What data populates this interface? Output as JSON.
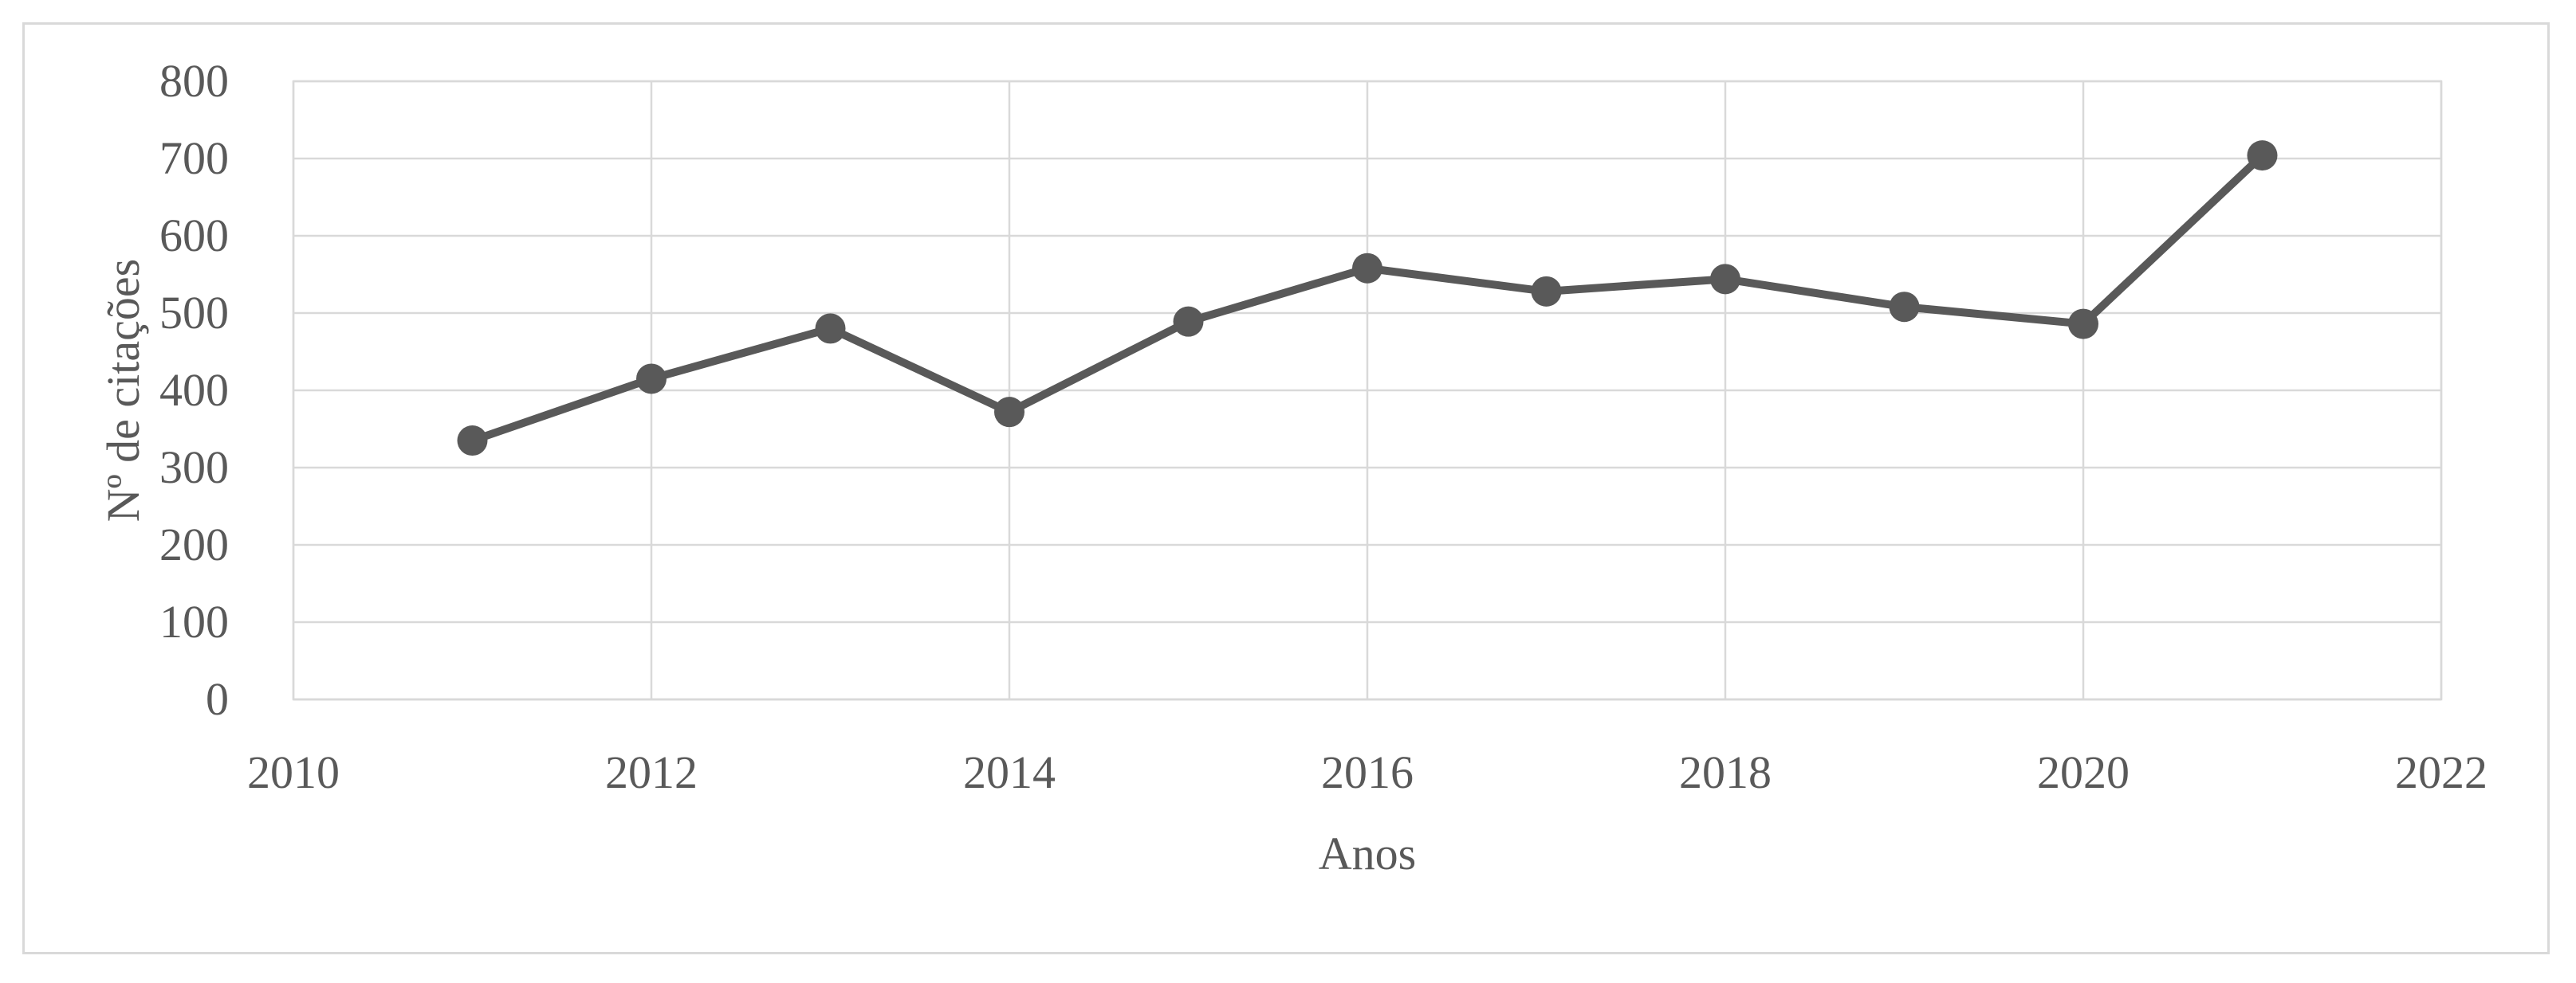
{
  "figure": {
    "background_color": "#FFFFFF",
    "frame_border_color": "#D9D9D9"
  },
  "chart_data": {
    "type": "line",
    "title": "",
    "xlabel": "Anos",
    "ylabel": "Nº de citações",
    "x": [
      2011,
      2012,
      2013,
      2014,
      2015,
      2016,
      2017,
      2018,
      2019,
      2020,
      2021
    ],
    "values": [
      335,
      415,
      480,
      372,
      489,
      558,
      528,
      544,
      508,
      486,
      704
    ],
    "series": [
      {
        "name": "Nº de citações",
        "color": "#595959",
        "values": [
          335,
          415,
          480,
          372,
          489,
          558,
          528,
          544,
          508,
          486,
          704
        ]
      }
    ],
    "x_ticks": [
      "2010",
      "2012",
      "2014",
      "2016",
      "2018",
      "2020",
      "2022"
    ],
    "x_tick_values": [
      2010,
      2012,
      2014,
      2016,
      2018,
      2020,
      2022
    ],
    "y_ticks": [
      "0",
      "100",
      "200",
      "300",
      "400",
      "500",
      "600",
      "700",
      "800"
    ],
    "y_tick_values": [
      0,
      100,
      200,
      300,
      400,
      500,
      600,
      700,
      800
    ],
    "xlim": [
      2010,
      2022
    ],
    "ylim": [
      0,
      800
    ],
    "grid": true,
    "legend": false,
    "line_color": "#595959",
    "marker_color": "#595959",
    "marker_shape": "circle",
    "grid_color": "#D9D9D9",
    "axis_line_color": "#BFBFBF",
    "axis_text_color": "#595959"
  }
}
